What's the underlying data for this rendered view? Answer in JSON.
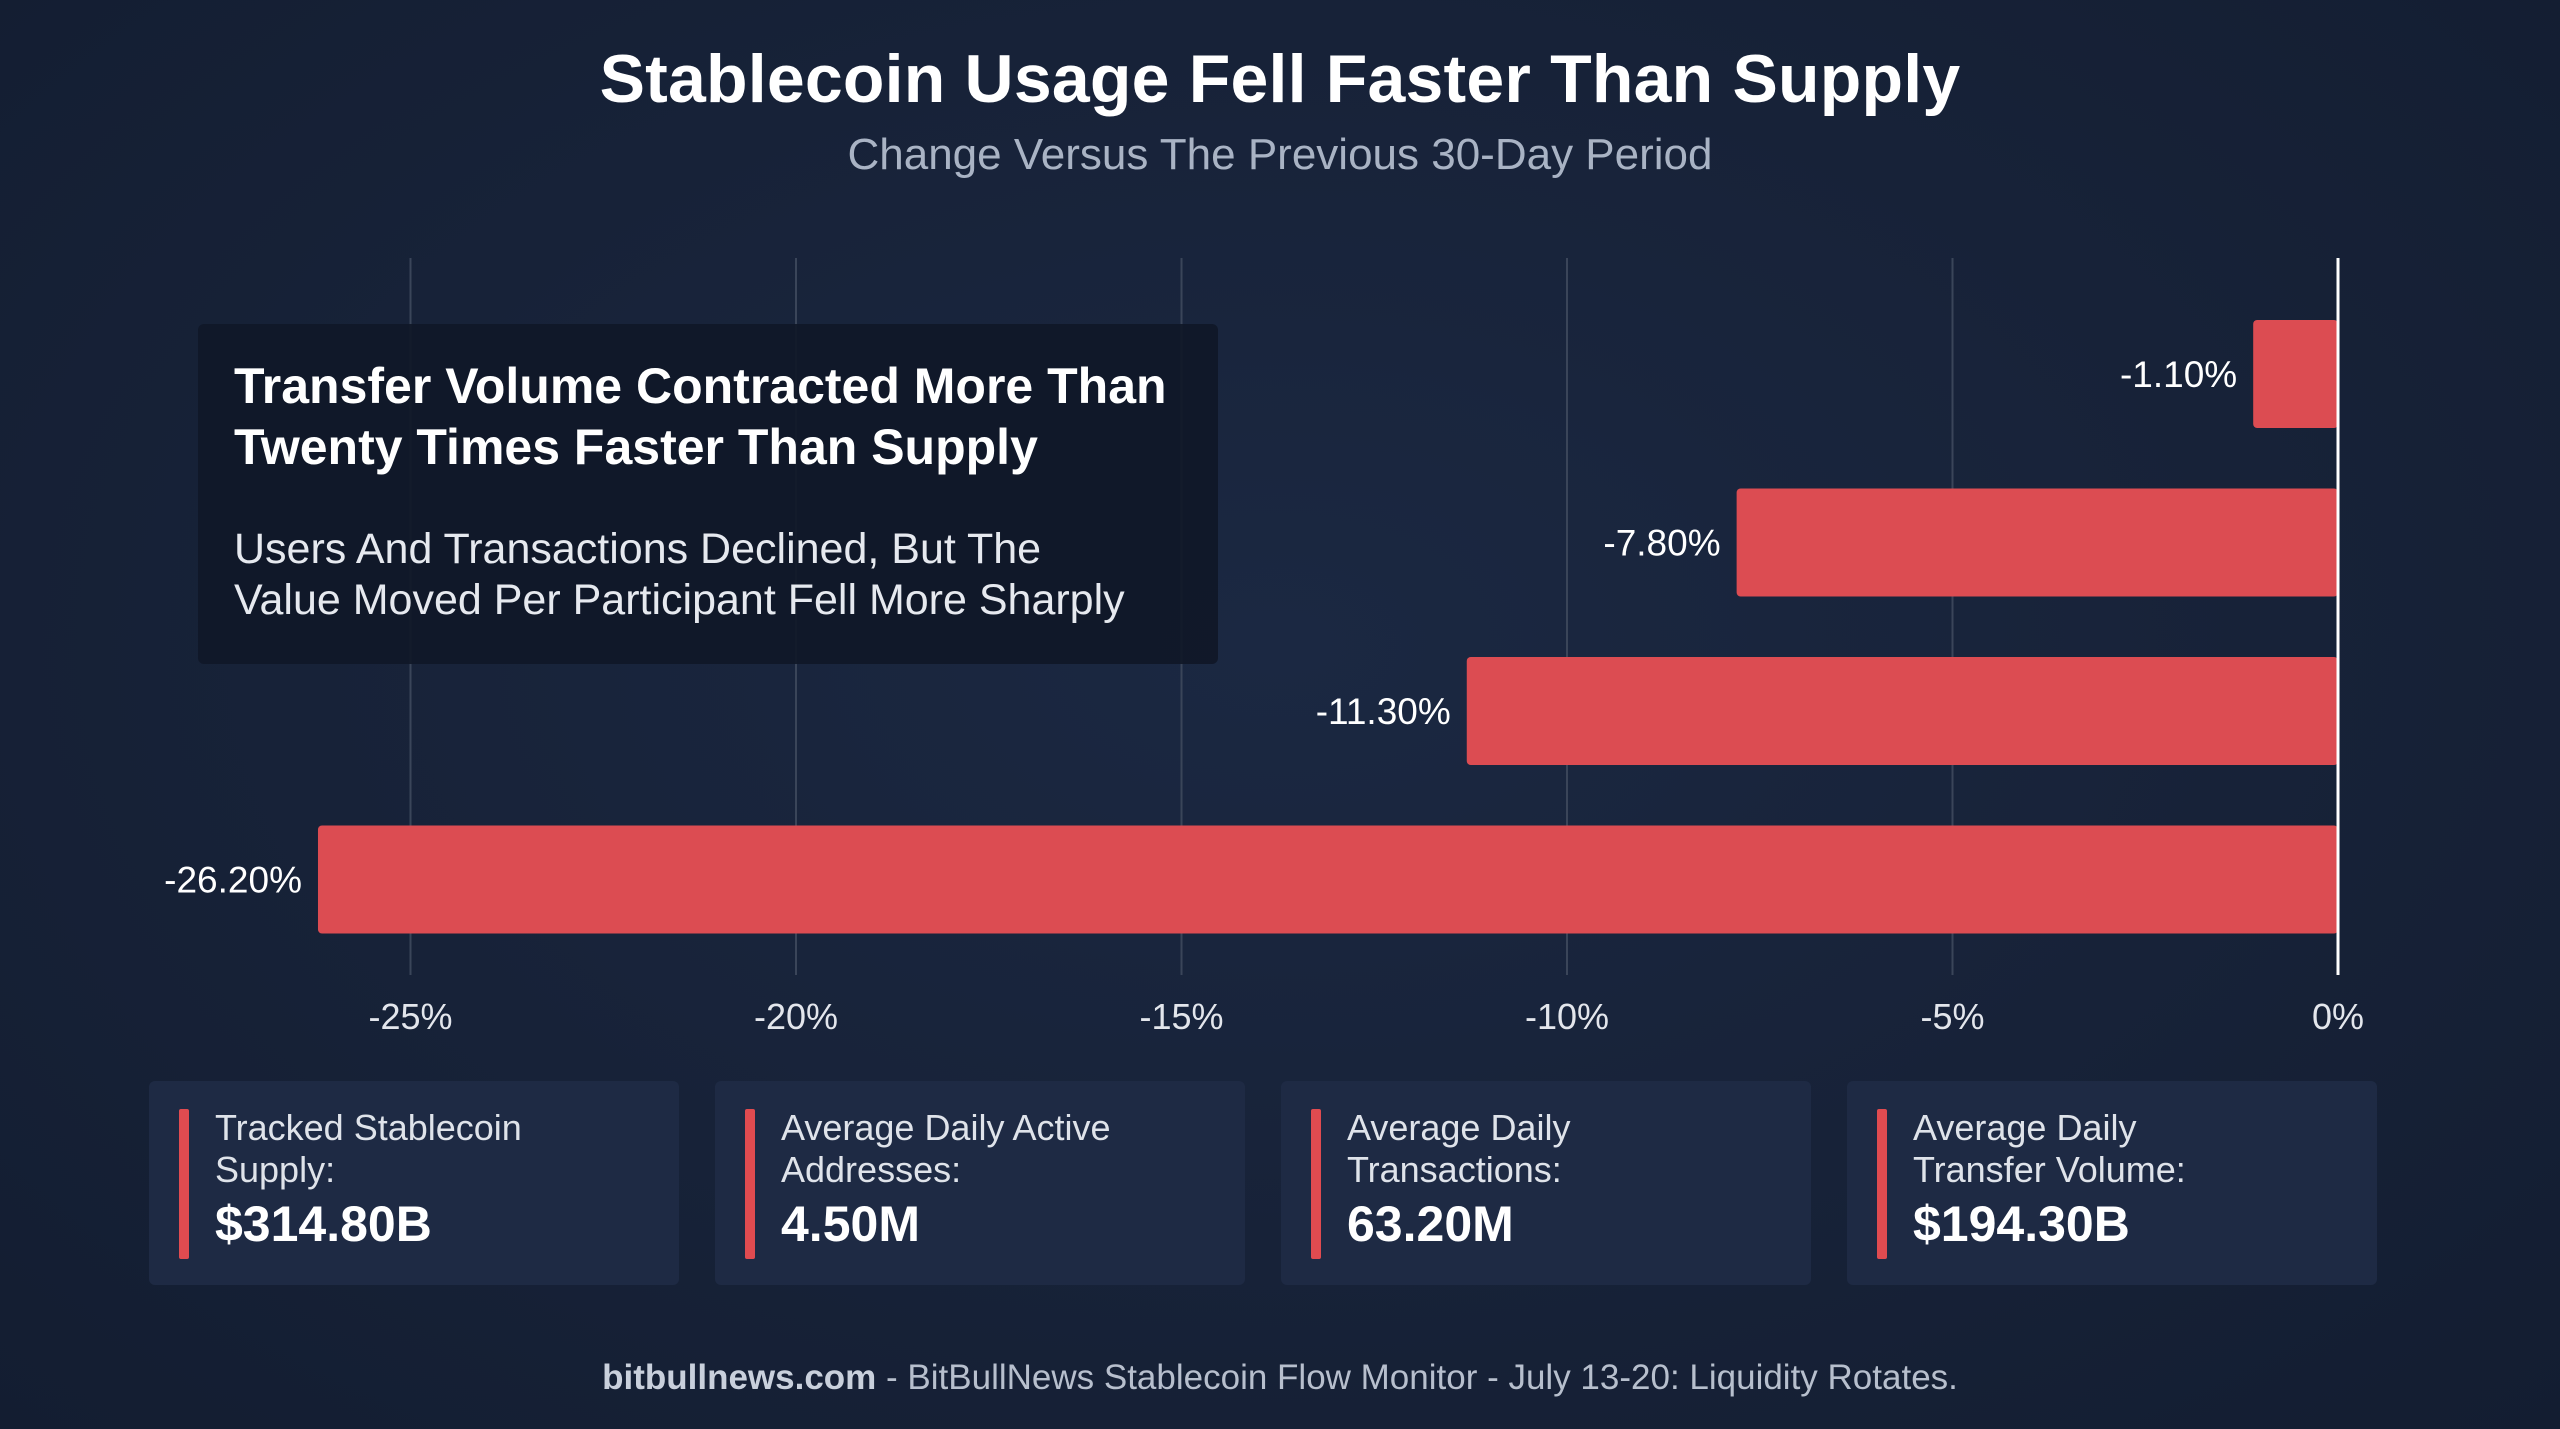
{
  "title": "Stablecoin Usage Fell Faster Than Supply",
  "subtitle": "Change Versus The Previous 30-Day Period",
  "callout": {
    "title_line1": "Transfer Volume Contracted More Than",
    "title_line2": "Twenty Times Faster Than Supply",
    "body_line1": "Users And Transactions Declined, But The",
    "body_line2": "Value Moved Per Participant Fell More Sharply"
  },
  "chart_data": {
    "type": "bar",
    "orientation": "horizontal",
    "values": [
      -1.1,
      -7.8,
      -11.3,
      -26.2
    ],
    "value_labels": [
      "-1.10%",
      "-7.80%",
      "-11.30%",
      "-26.20%"
    ],
    "xlim": [
      -25.75,
      0
    ],
    "x_ticks": [
      -25,
      -20,
      -15,
      -10,
      -5,
      0
    ],
    "x_tick_labels": [
      "-25%",
      "-20%",
      "-15%",
      "-10%",
      "-5%",
      "0%"
    ],
    "grid": true,
    "bar_color": "#dc4c52",
    "zero_line_color": "#ffffff"
  },
  "stats": [
    {
      "label_line1": "Tracked Stablecoin",
      "label_line2": "Supply:",
      "value": "$314.80B"
    },
    {
      "label_line1": "Average Daily Active",
      "label_line2": "Addresses:",
      "value": "4.50M"
    },
    {
      "label_line1": "Average Daily",
      "label_line2": "Transactions:",
      "value": "63.20M"
    },
    {
      "label_line1": "Average Daily",
      "label_line2": "Transfer Volume:",
      "value": "$194.30B"
    }
  ],
  "footer": {
    "brand": "bitbullnews.com",
    "text": " - BitBullNews Stablecoin Flow Monitor - July 13-20: Liquidity Rotates."
  },
  "colors": {
    "background": "#172238",
    "accent": "#e04b50",
    "card": "#1e2a44"
  }
}
